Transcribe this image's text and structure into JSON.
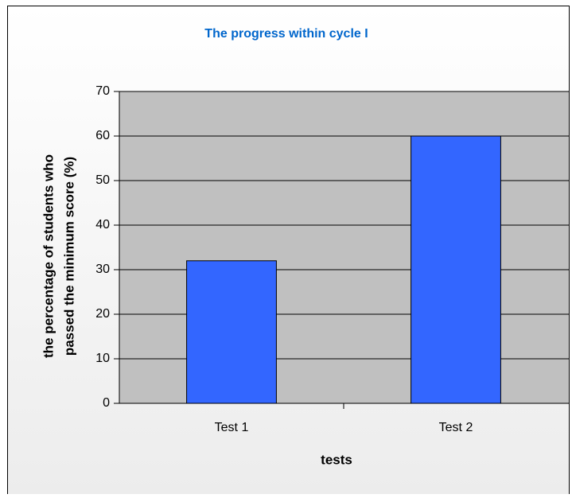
{
  "chart_data": {
    "type": "bar",
    "title": "The progress within cycle I",
    "ylabel": [
      "the percentage of students who",
      "passed the minimum score (%)"
    ],
    "xlabel": "tests",
    "categories": [
      "Test 1",
      "Test 2"
    ],
    "values": [
      32,
      60
    ],
    "color": "#3366ff",
    "ylim": [
      0,
      70
    ],
    "yticks": [
      0,
      10,
      20,
      30,
      40,
      50,
      60,
      70
    ],
    "grid": true
  }
}
